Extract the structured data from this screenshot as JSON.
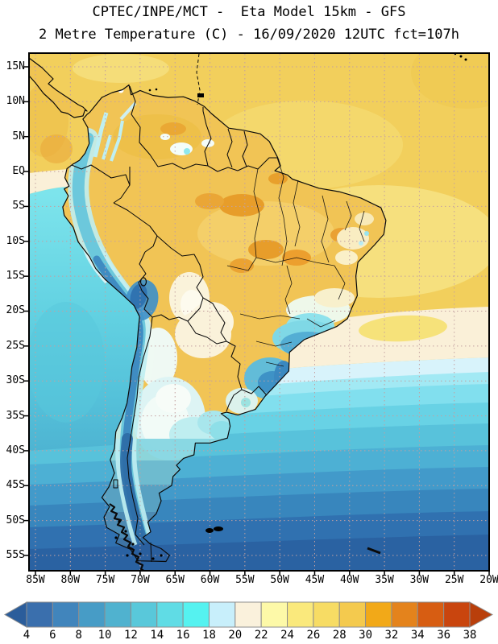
{
  "title": {
    "line1": "CPTEC/INPE/MCT -  Eta Model 15km - GFS",
    "line2": "2 Metre Temperature (C) - 16/09/2020 12UTC fct=107h"
  },
  "axes": {
    "lat_labels": [
      "15N",
      "10N",
      "5N",
      "EQ",
      "5S",
      "10S",
      "15S",
      "20S",
      "25S",
      "30S",
      "35S",
      "40S",
      "45S",
      "50S",
      "55S"
    ],
    "lon_labels": [
      "85W",
      "80W",
      "75W",
      "70W",
      "65W",
      "60W",
      "55W",
      "50W",
      "45W",
      "40W",
      "35W",
      "30W",
      "25W",
      "20W"
    ]
  },
  "colorbar": {
    "tick_labels": [
      "4",
      "6",
      "8",
      "10",
      "12",
      "14",
      "16",
      "18",
      "20",
      "22",
      "24",
      "26",
      "28",
      "30",
      "32",
      "34",
      "36",
      "38"
    ],
    "cell_colors": [
      "#3a6fad",
      "#4185bc",
      "#479cc6",
      "#50b2cf",
      "#59c8da",
      "#60dce5",
      "#55f2f0",
      "#c8effb",
      "#faf1dc",
      "#fdf9a8",
      "#fae97c",
      "#f7dc64",
      "#f4ca4e",
      "#f2a918",
      "#e4831c",
      "#d75d12",
      "#c9450e"
    ],
    "left_arrow_color": "#2b5d9b",
    "right_arrow_color": "#b93f0b",
    "cell_border_color": "#8e8e8e"
  },
  "map": {
    "frame_color": "#000000",
    "grid_color": "#c3a0a0",
    "land_base_color": "#f1c455",
    "ocean_warm_color": "#f2cf5c",
    "ocean_cold_color": "#2a62a2",
    "andes_cold_color": "#2e6fae"
  }
}
